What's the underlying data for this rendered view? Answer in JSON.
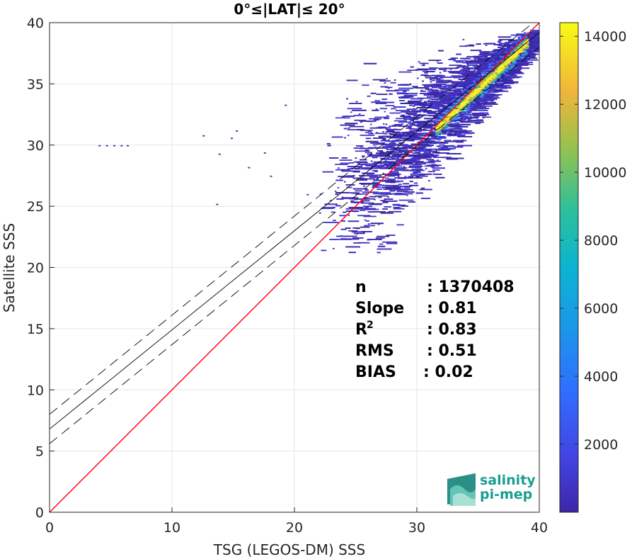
{
  "chart_data": {
    "type": "heatmap",
    "title": "0°≤|LAT|≤ 20°",
    "xlabel": "TSG (LEGOS-DM) SSS",
    "ylabel": "Satellite SSS",
    "xlim": [
      0,
      40
    ],
    "ylim": [
      0,
      40
    ],
    "x_ticks": [
      0,
      10,
      20,
      30,
      40
    ],
    "y_ticks": [
      0,
      5,
      10,
      15,
      20,
      25,
      30,
      35,
      40
    ],
    "grid": true,
    "colorbar": {
      "range": [
        0,
        14400
      ],
      "ticks": [
        2000,
        4000,
        6000,
        8000,
        10000,
        12000,
        14000
      ],
      "colormap": "parula"
    },
    "lines": [
      {
        "name": "one-to-one",
        "style": "solid",
        "color": "#ff0000",
        "intercept": 0,
        "slope": 1
      },
      {
        "name": "regression",
        "style": "solid",
        "color": "#000000",
        "intercept": 6.8,
        "slope": 0.81
      },
      {
        "name": "regression-plus",
        "style": "dashed",
        "color": "#000000",
        "intercept": 8.0,
        "slope": 0.81
      },
      {
        "name": "regression-minus",
        "style": "dashed",
        "color": "#000000",
        "intercept": 5.6,
        "slope": 0.81
      }
    ],
    "stats": [
      {
        "label": "n",
        "value": ": 1370408"
      },
      {
        "label": "Slope",
        "value": ": 0.81"
      },
      {
        "label": "R",
        "sup": "2",
        "value": ": 0.83"
      },
      {
        "label": "RMS",
        "value": ": 0.51"
      },
      {
        "label": "BIAS",
        "value": ": 0.02"
      }
    ]
  },
  "logo": {
    "line1": "salinity",
    "line2": "pi-mep"
  },
  "colors": {
    "low": "#3e26a8",
    "mid": "#2ab7c9",
    "high": "#f9fb15",
    "one_to_one": "#ff0000"
  }
}
